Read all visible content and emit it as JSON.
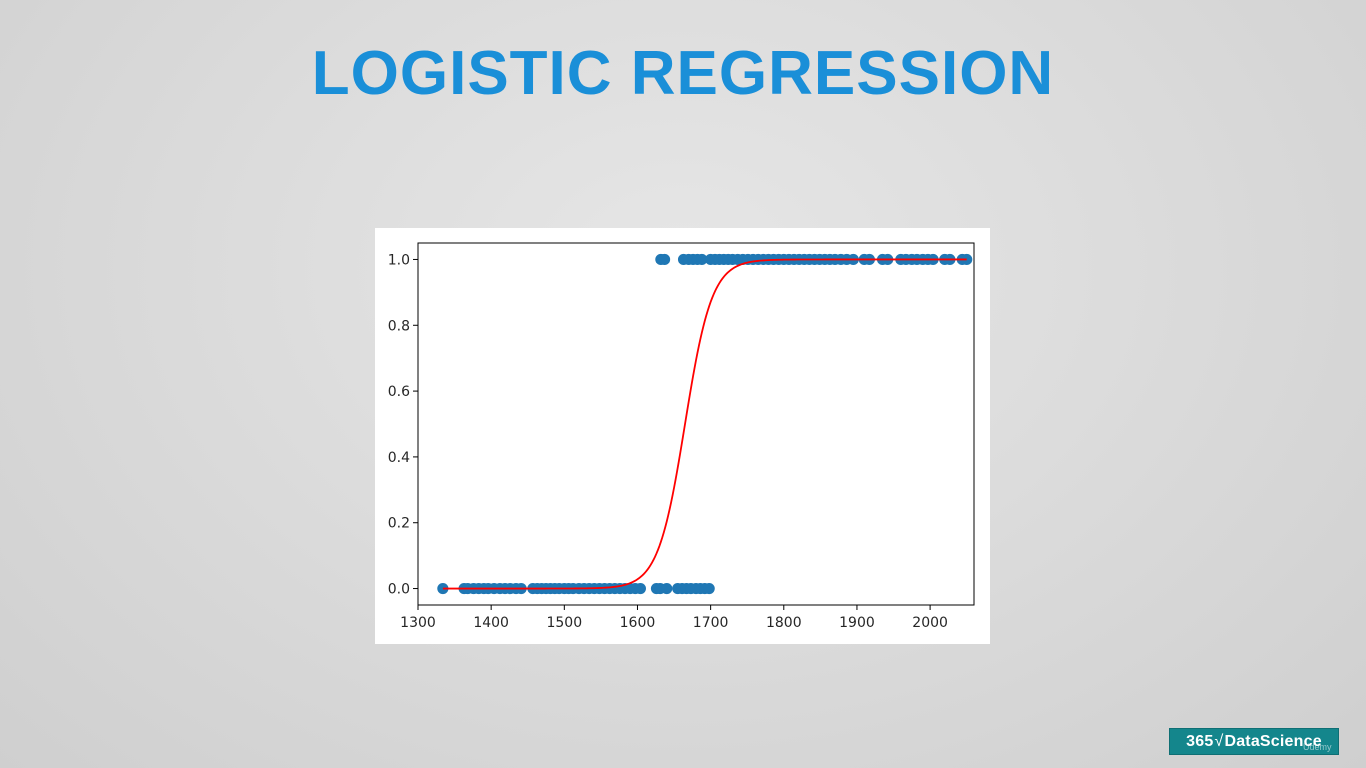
{
  "slide": {
    "title": "LOGISTIC REGRESSION"
  },
  "branding": {
    "logo_number": "365",
    "logo_symbol": "√",
    "logo_text": "DataScience",
    "watermark": "Udemy"
  },
  "colors": {
    "title": "#1a8fd8",
    "points": "#1f77b4",
    "curve": "#ff0000",
    "logo_bg": "#14868c"
  },
  "chart_data": {
    "type": "scatter",
    "title": "",
    "xlabel": "",
    "ylabel": "",
    "xlim": [
      1300,
      2060
    ],
    "ylim": [
      -0.05,
      1.05
    ],
    "xticks": [
      1300,
      1400,
      1500,
      1600,
      1700,
      1800,
      1900,
      2000
    ],
    "yticks": [
      0.0,
      0.2,
      0.4,
      0.6,
      0.8,
      1.0
    ],
    "xtick_labels": [
      "1300",
      "1400",
      "1500",
      "1600",
      "1700",
      "1800",
      "1900",
      "2000"
    ],
    "ytick_labels": [
      "0.0",
      "0.2",
      "0.4",
      "0.6",
      "0.8",
      "1.0"
    ],
    "grid": false,
    "legend": "none",
    "series": [
      {
        "kind": "scatter",
        "points": [
          [
            1334,
            0
          ],
          [
            1363,
            0
          ],
          [
            1368,
            0
          ],
          [
            1376,
            0
          ],
          [
            1383,
            0
          ],
          [
            1390,
            0
          ],
          [
            1396,
            0
          ],
          [
            1404,
            0
          ],
          [
            1412,
            0
          ],
          [
            1419,
            0
          ],
          [
            1426,
            0
          ],
          [
            1434,
            0
          ],
          [
            1441,
            0
          ],
          [
            1457,
            0
          ],
          [
            1463,
            0
          ],
          [
            1469,
            0
          ],
          [
            1475,
            0
          ],
          [
            1481,
            0
          ],
          [
            1487,
            0
          ],
          [
            1493,
            0
          ],
          [
            1500,
            0
          ],
          [
            1506,
            0
          ],
          [
            1512,
            0
          ],
          [
            1520,
            0
          ],
          [
            1527,
            0
          ],
          [
            1534,
            0
          ],
          [
            1541,
            0
          ],
          [
            1548,
            0
          ],
          [
            1555,
            0
          ],
          [
            1562,
            0
          ],
          [
            1569,
            0
          ],
          [
            1576,
            0
          ],
          [
            1583,
            0
          ],
          [
            1590,
            0
          ],
          [
            1597,
            0
          ],
          [
            1604,
            0
          ],
          [
            1626,
            0
          ],
          [
            1631,
            0
          ],
          [
            1640,
            0
          ],
          [
            1655,
            0
          ],
          [
            1661,
            0
          ],
          [
            1667,
            0
          ],
          [
            1673,
            0
          ],
          [
            1680,
            0
          ],
          [
            1686,
            0
          ],
          [
            1692,
            0
          ],
          [
            1698,
            0
          ],
          [
            1632,
            1
          ],
          [
            1637,
            1
          ],
          [
            1663,
            1
          ],
          [
            1670,
            1
          ],
          [
            1676,
            1
          ],
          [
            1682,
            1
          ],
          [
            1688,
            1
          ],
          [
            1700,
            1
          ],
          [
            1706,
            1
          ],
          [
            1712,
            1
          ],
          [
            1718,
            1
          ],
          [
            1724,
            1
          ],
          [
            1730,
            1
          ],
          [
            1737,
            1
          ],
          [
            1744,
            1
          ],
          [
            1751,
            1
          ],
          [
            1758,
            1
          ],
          [
            1765,
            1
          ],
          [
            1772,
            1
          ],
          [
            1779,
            1
          ],
          [
            1786,
            1
          ],
          [
            1793,
            1
          ],
          [
            1800,
            1
          ],
          [
            1807,
            1
          ],
          [
            1814,
            1
          ],
          [
            1821,
            1
          ],
          [
            1828,
            1
          ],
          [
            1835,
            1
          ],
          [
            1842,
            1
          ],
          [
            1849,
            1
          ],
          [
            1856,
            1
          ],
          [
            1863,
            1
          ],
          [
            1870,
            1
          ],
          [
            1878,
            1
          ],
          [
            1886,
            1
          ],
          [
            1895,
            1
          ],
          [
            1910,
            1
          ],
          [
            1917,
            1
          ],
          [
            1935,
            1
          ],
          [
            1942,
            1
          ],
          [
            1960,
            1
          ],
          [
            1967,
            1
          ],
          [
            1975,
            1
          ],
          [
            1982,
            1
          ],
          [
            1990,
            1
          ],
          [
            1997,
            1
          ],
          [
            2004,
            1
          ],
          [
            2020,
            1
          ],
          [
            2027,
            1
          ],
          [
            2044,
            1
          ],
          [
            2050,
            1
          ]
        ]
      },
      {
        "kind": "line",
        "model": "logistic",
        "midpoint": 1665,
        "steepness": 0.0545,
        "x_range": [
          1334,
          2050
        ]
      }
    ]
  }
}
